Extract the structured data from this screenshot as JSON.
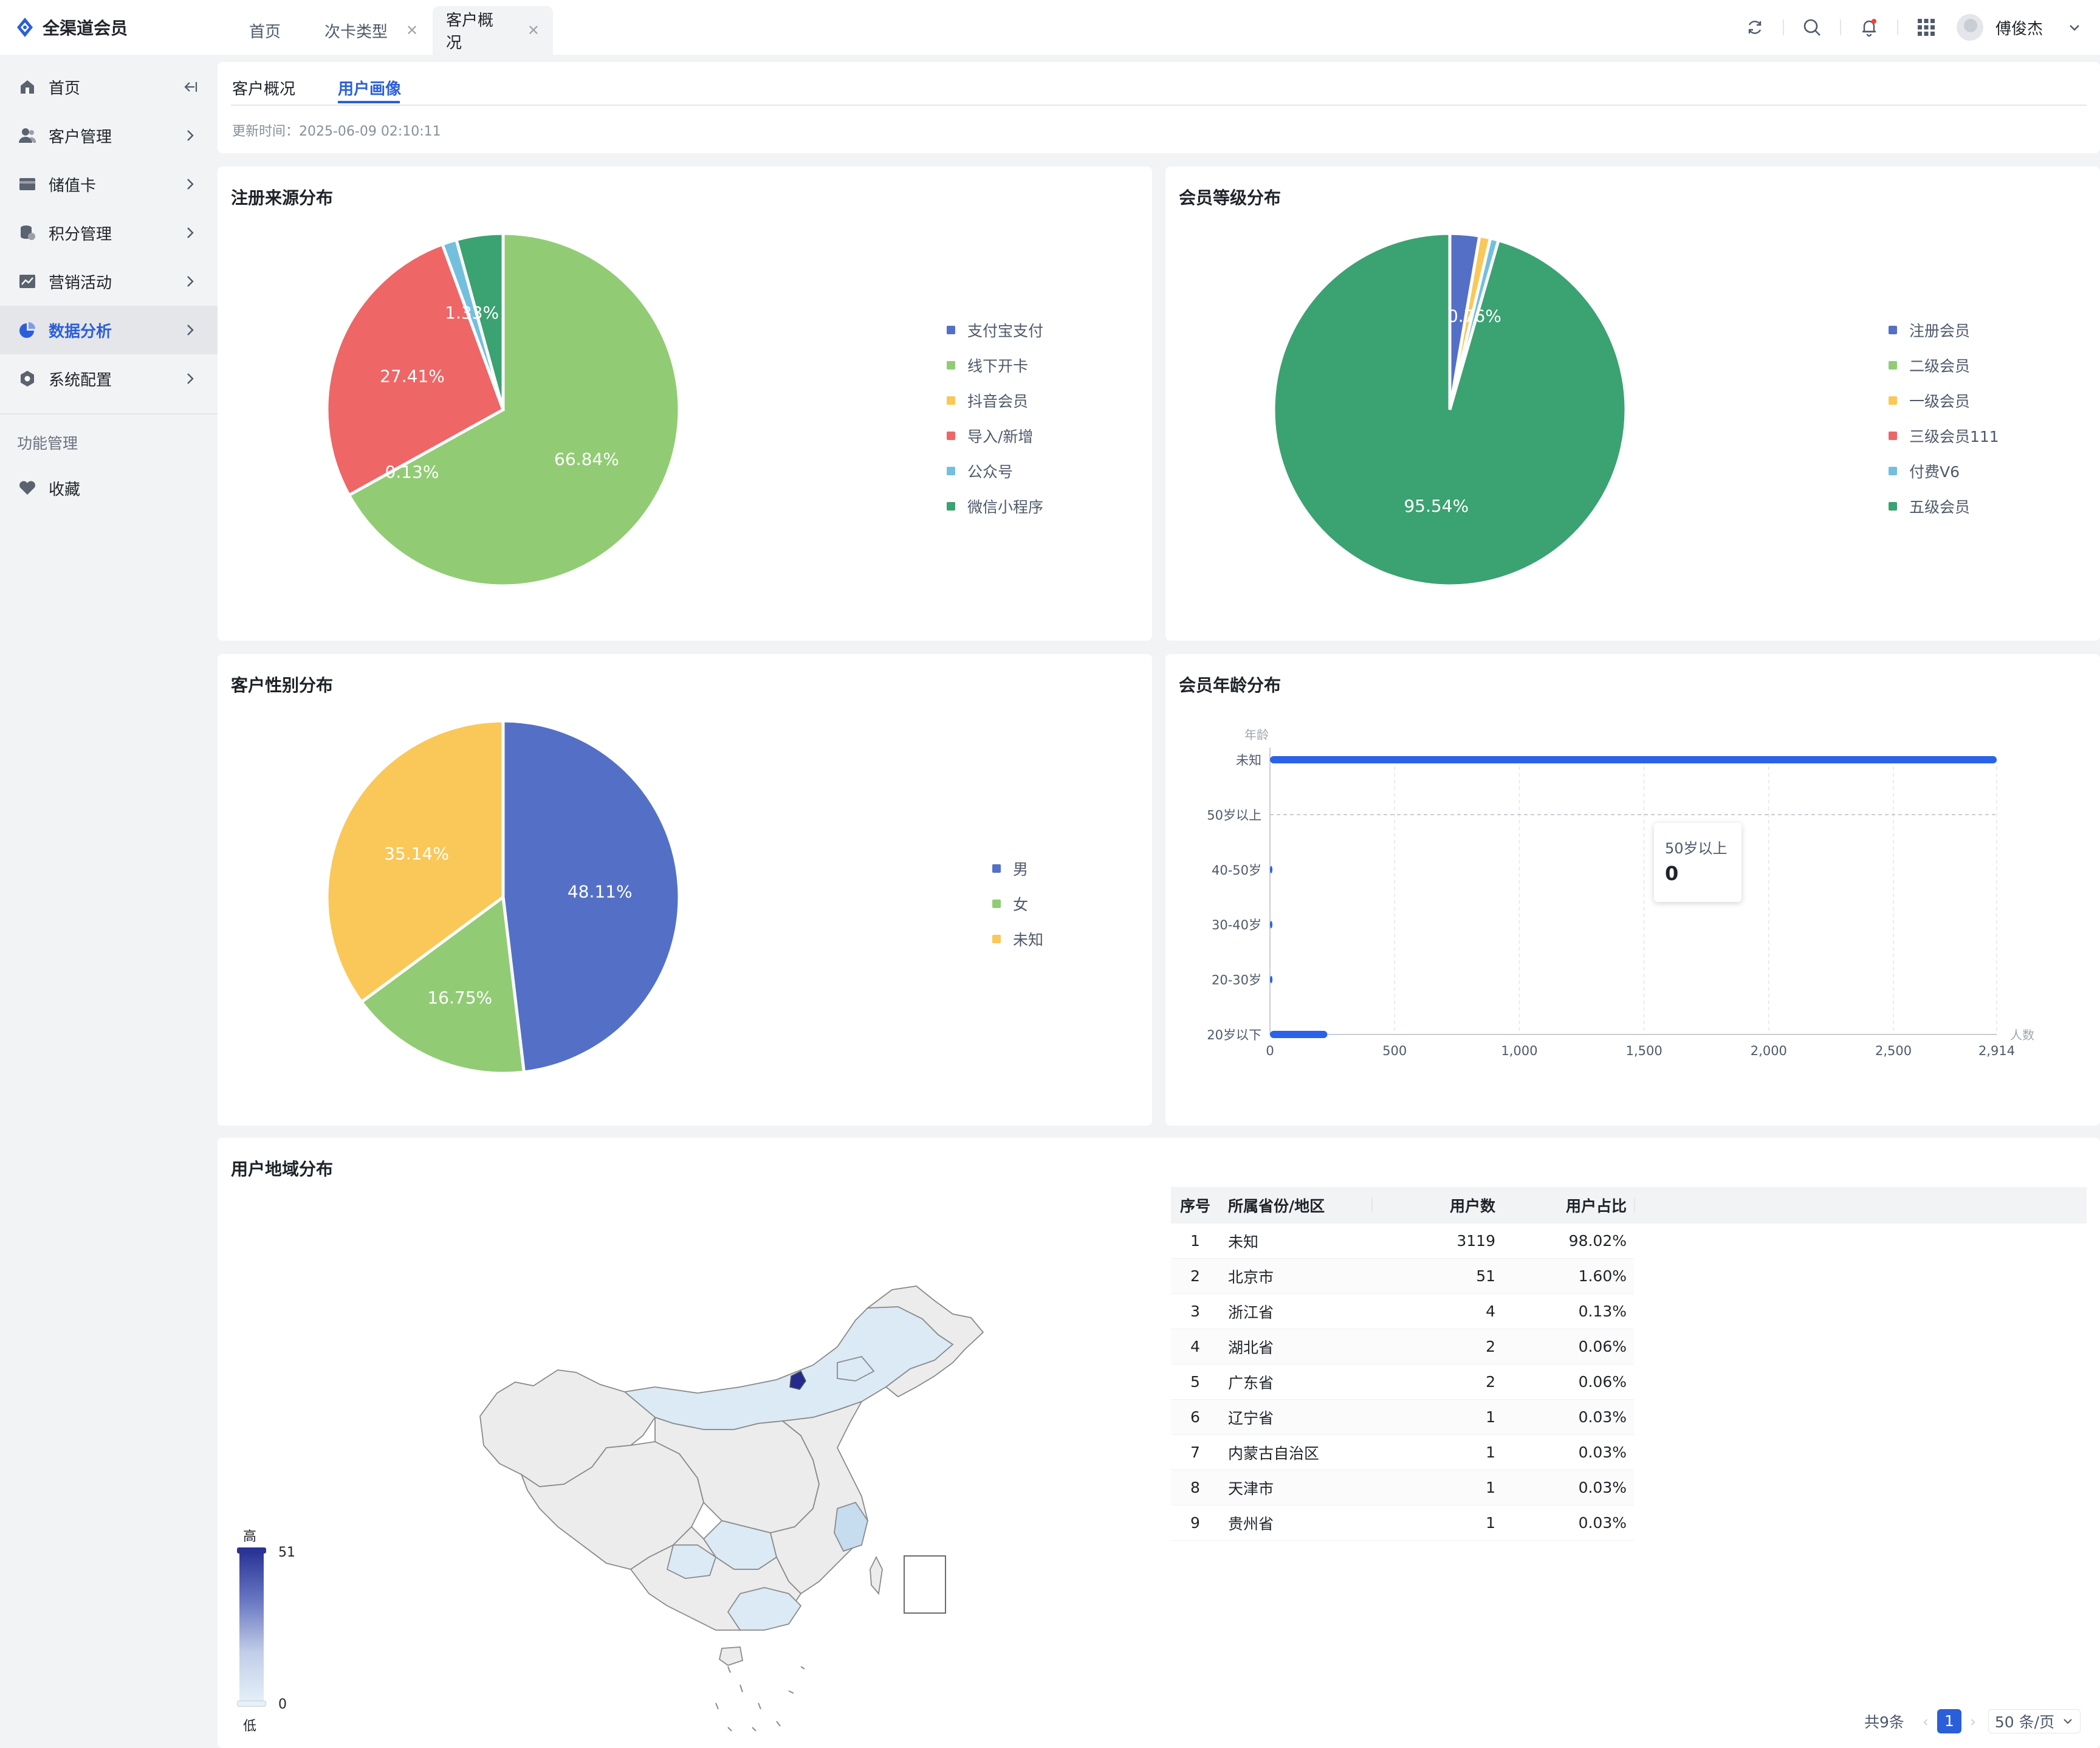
{
  "app": {
    "title": "全渠道会员"
  },
  "tabs": [
    {
      "label": "首页",
      "closable": false,
      "active": false
    },
    {
      "label": "次卡类型",
      "closable": true,
      "active": false
    },
    {
      "label": "客户概况",
      "closable": true,
      "active": true
    }
  ],
  "header": {
    "user_name": "傅俊杰",
    "icons": [
      "refresh-icon",
      "search-icon",
      "bell-icon",
      "apps-grid-icon"
    ]
  },
  "sidebar": {
    "items": [
      {
        "label": "首页",
        "icon": "home-icon"
      },
      {
        "label": "客户管理",
        "icon": "users-icon"
      },
      {
        "label": "储值卡",
        "icon": "card-icon"
      },
      {
        "label": "积分管理",
        "icon": "points-icon"
      },
      {
        "label": "营销活动",
        "icon": "chart-line-icon"
      },
      {
        "label": "数据分析",
        "icon": "pie-icon",
        "active": true
      },
      {
        "label": "系统配置",
        "icon": "settings-icon"
      }
    ],
    "group_label": "功能管理",
    "favorites_label": "收藏"
  },
  "subtabs": [
    {
      "label": "客户概况",
      "active": false
    },
    {
      "label": "用户画像",
      "active": true
    }
  ],
  "update_time": "更新时间：2025-06-09 02:10:11",
  "colors": {
    "primary": "#2b5fd9",
    "blue": "#5470c6",
    "green": "#91cc75",
    "yellow": "#fac858",
    "red": "#ee6666",
    "cyan": "#73c0de",
    "teal": "#3ba272"
  },
  "chart_data": [
    {
      "type": "pie",
      "title": "注册来源分布",
      "labels": [
        "支付宝支付",
        "线下开卡",
        "抖音会员",
        "导入/新增",
        "公众号",
        "微信小程序"
      ],
      "values": [
        0,
        66.84,
        0,
        27.41,
        1.33,
        4.27
      ],
      "data_labels": [
        "",
        "66.84%",
        "",
        "27.41%",
        "1.33%",
        ""
      ],
      "extra_label": "0.13%",
      "legend_position": "right"
    },
    {
      "type": "pie",
      "title": "会员等级分布",
      "labels": [
        "注册会员",
        "二级会员",
        "一级会员",
        "三级会员111",
        "付费V6",
        "五级会员"
      ],
      "values": [
        2.7,
        0,
        1.0,
        0,
        0.76,
        95.54
      ],
      "data_labels": [
        "",
        "",
        "",
        "",
        "0.76%",
        "95.54%"
      ],
      "legend_position": "right"
    },
    {
      "type": "pie",
      "title": "客户性别分布",
      "labels": [
        "男",
        "女",
        "未知"
      ],
      "values": [
        48.11,
        16.75,
        35.14
      ],
      "data_labels": [
        "48.11%",
        "16.75%",
        "35.14%"
      ],
      "legend_position": "right"
    },
    {
      "type": "bar",
      "orientation": "horizontal",
      "title": "会员年龄分布",
      "ylabel": "年龄",
      "xlabel": "人数",
      "categories": [
        "未知",
        "50岁以上",
        "40-50岁",
        "30-40岁",
        "20-30岁",
        "20岁以下"
      ],
      "values": [
        2914,
        0,
        2,
        5,
        10,
        230
      ],
      "xlim": [
        0,
        2914
      ],
      "xticks": [
        "0",
        "500",
        "1,000",
        "1,500",
        "2,000",
        "2,500",
        "2,914"
      ],
      "tooltip": {
        "label": "50岁以上",
        "value": "0"
      }
    }
  ],
  "region": {
    "title": "用户地域分布",
    "map_legend": {
      "high": "高",
      "low": "低",
      "max": "51",
      "min": "0"
    },
    "table": {
      "headers": [
        "序号",
        "所属省份/地区",
        "用户数",
        "用户占比"
      ],
      "rows": [
        [
          "1",
          "未知",
          "3119",
          "98.02%"
        ],
        [
          "2",
          "北京市",
          "51",
          "1.60%"
        ],
        [
          "3",
          "浙江省",
          "4",
          "0.13%"
        ],
        [
          "4",
          "湖北省",
          "2",
          "0.06%"
        ],
        [
          "5",
          "广东省",
          "2",
          "0.06%"
        ],
        [
          "6",
          "辽宁省",
          "1",
          "0.03%"
        ],
        [
          "7",
          "内蒙古自治区",
          "1",
          "0.03%"
        ],
        [
          "8",
          "天津市",
          "1",
          "0.03%"
        ],
        [
          "9",
          "贵州省",
          "1",
          "0.03%"
        ]
      ]
    },
    "pager": {
      "total": "共9条",
      "page": "1",
      "size": "50 条/页"
    }
  }
}
